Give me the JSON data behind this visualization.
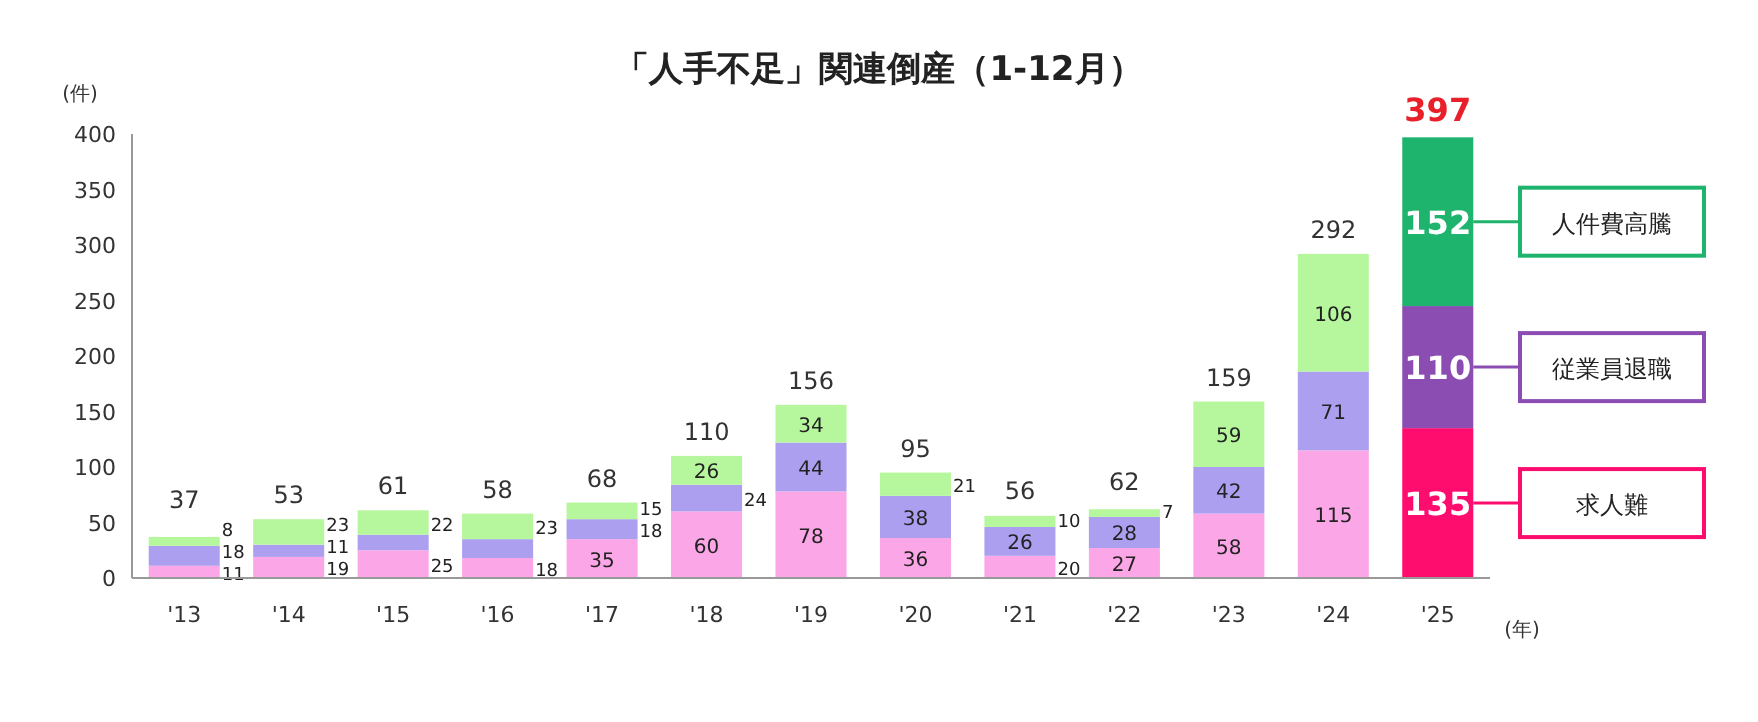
{
  "chart_data": {
    "type": "bar",
    "stacked": true,
    "title": "「人手不足」関連倒産（1-12月）",
    "ylabel": "(件)",
    "xlabel": "(年)",
    "categories": [
      "'13",
      "'14",
      "'15",
      "'16",
      "'17",
      "'18",
      "'19",
      "'20",
      "'21",
      "'22",
      "'23",
      "'24",
      "'25"
    ],
    "ylim": [
      0,
      400
    ],
    "yticks": [
      0,
      50,
      100,
      150,
      200,
      250,
      300,
      350,
      400
    ],
    "grid": false,
    "legend": "right",
    "series": [
      {
        "name": "求人難",
        "colors": [
          "#fba6e6",
          "#fba6e6",
          "#fba6e6",
          "#fba6e6",
          "#fba6e6",
          "#fba6e6",
          "#fba6e6",
          "#fba6e6",
          "#fba6e6",
          "#fba6e6",
          "#fba6e6",
          "#fba6e6",
          "#ff0d6e"
        ],
        "values": [
          11,
          19,
          25,
          18,
          35,
          60,
          78,
          36,
          20,
          27,
          58,
          115,
          135
        ],
        "value_labels": [
          "11",
          "19",
          "25",
          "18",
          "35",
          "60",
          "78",
          "36",
          "20",
          "27",
          "58",
          "115",
          "135"
        ]
      },
      {
        "name": "従業員退職",
        "colors": [
          "#ad9ff0",
          "#ad9ff0",
          "#ad9ff0",
          "#ad9ff0",
          "#ad9ff0",
          "#ad9ff0",
          "#ad9ff0",
          "#ad9ff0",
          "#ad9ff0",
          "#ad9ff0",
          "#ad9ff0",
          "#ad9ff0",
          "#8c4db3"
        ],
        "values": [
          18,
          11,
          14,
          17,
          18,
          24,
          44,
          38,
          26,
          28,
          42,
          71,
          110
        ],
        "value_labels": [
          "18",
          "11",
          null,
          null,
          "18",
          "24",
          "44",
          "38",
          "26",
          "28",
          "42",
          "71",
          "110"
        ]
      },
      {
        "name": "人件費高騰",
        "colors": [
          "#b6f79e",
          "#b6f79e",
          "#b6f79e",
          "#b6f79e",
          "#b6f79e",
          "#b6f79e",
          "#b6f79e",
          "#b6f79e",
          "#b6f79e",
          "#b6f79e",
          "#b6f79e",
          "#b6f79e",
          "#1fb46e"
        ],
        "values": [
          8,
          23,
          22,
          23,
          15,
          26,
          34,
          21,
          10,
          7,
          59,
          106,
          152
        ],
        "value_labels": [
          "8",
          "23",
          "22",
          "23",
          "15",
          "26",
          "34",
          "21",
          "10",
          "7",
          "59",
          "106",
          "152"
        ]
      }
    ],
    "totals": [
      "37",
      "53",
      "61",
      "58",
      "68",
      "110",
      "156",
      "95",
      "56",
      "62",
      "159",
      "292",
      "397"
    ]
  }
}
